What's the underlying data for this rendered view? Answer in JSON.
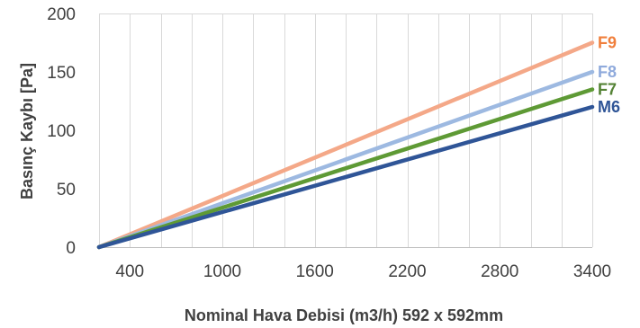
{
  "chart_data": {
    "type": "line",
    "title": "",
    "xlabel": "Nominal Hava Debisi (m3/h) 592 x 592mm",
    "ylabel": "Basınç Kaybı [Pa]",
    "xlim": [
      200,
      3400
    ],
    "ylim": [
      0,
      200
    ],
    "x_ticks": [
      400,
      1000,
      1600,
      2200,
      2800,
      3400
    ],
    "x_tick_labels": [
      "400",
      "1000",
      "1600",
      "2200",
      "2800",
      "3400"
    ],
    "y_ticks": [
      0,
      50,
      100,
      150,
      200
    ],
    "y_tick_labels": [
      "0",
      "50",
      "100",
      "150",
      "200"
    ],
    "grid": "vertical",
    "legend": "none",
    "series_label_placement": "right of line ends",
    "series": [
      {
        "name": "F9",
        "color": "#F4A888",
        "label_color": "#F07F3C",
        "x": [
          200,
          3400
        ],
        "values": [
          0,
          175
        ]
      },
      {
        "name": "F8",
        "color": "#9DB9E1",
        "label_color": "#8FAADC",
        "x": [
          200,
          3400
        ],
        "values": [
          0,
          150
        ]
      },
      {
        "name": "F7",
        "color": "#5E9A35",
        "label_color": "#548235",
        "x": [
          200,
          3400
        ],
        "values": [
          0,
          135
        ]
      },
      {
        "name": "M6",
        "color": "#2F5597",
        "label_color": "#2F5597",
        "x": [
          200,
          3400
        ],
        "values": [
          0,
          120
        ]
      }
    ]
  }
}
